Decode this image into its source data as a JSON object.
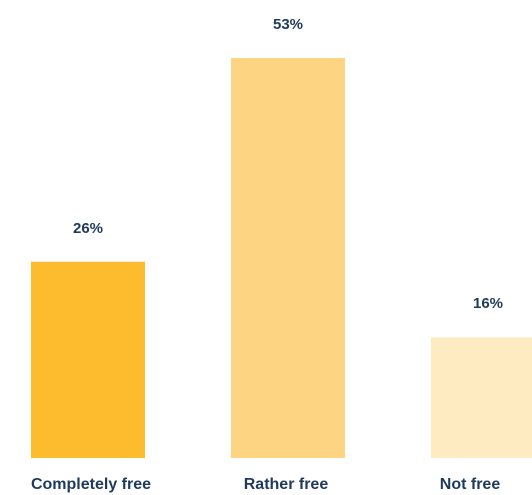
{
  "chart_data": {
    "type": "bar",
    "categories": [
      "Completely free",
      "Rather free",
      "Not free"
    ],
    "values": [
      26,
      53,
      16
    ],
    "value_labels": [
      "26%",
      "53%",
      "16%"
    ],
    "ylim": [
      0,
      53
    ],
    "grid": false,
    "colors": {
      "bars": [
        "#FCBC2E",
        "#FDD582",
        "#FEEBC2"
      ],
      "text": "#1F3A5A"
    }
  }
}
